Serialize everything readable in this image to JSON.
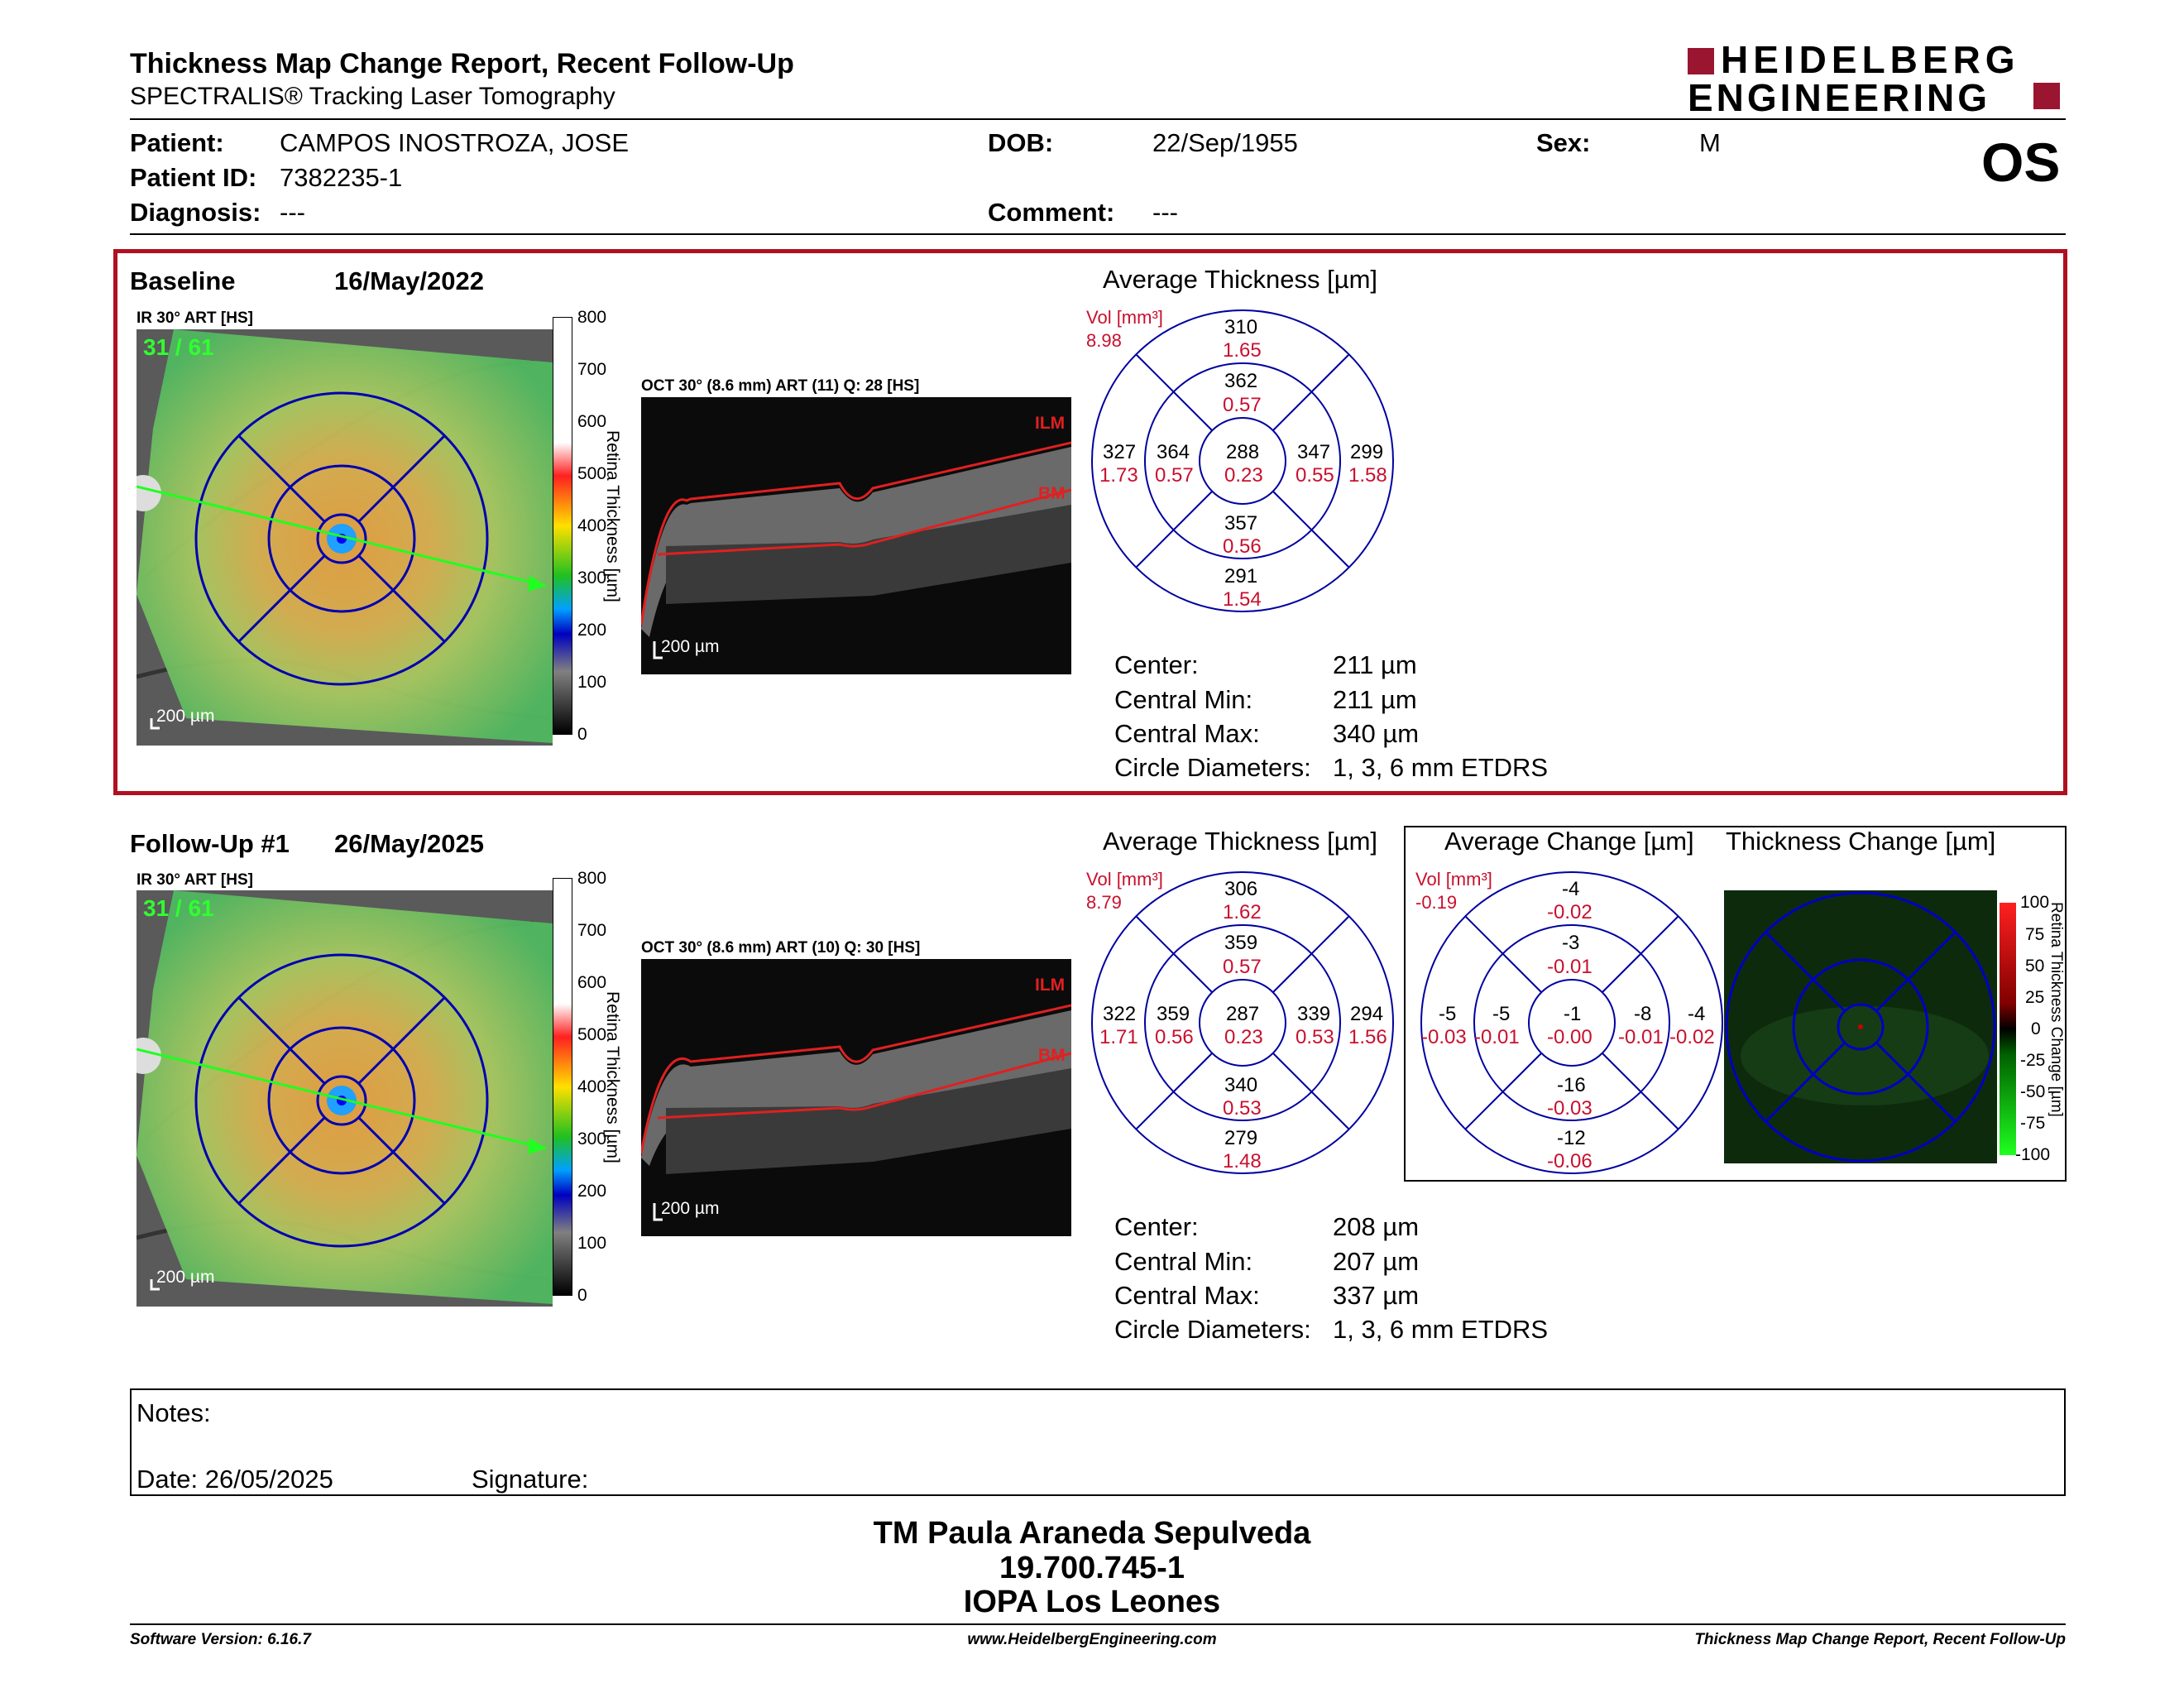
{
  "header": {
    "title": "Thickness Map Change Report, Recent Follow-Up",
    "subtitle": "SPECTRALIS® Tracking Laser Tomography",
    "logo_line1": "HEIDELBERG",
    "logo_line2": "ENGINEERING",
    "eye": "OS"
  },
  "patient": {
    "patient_label": "Patient:",
    "patient": "CAMPOS INOSTROZA, JOSE",
    "id_label": "Patient ID:",
    "id": "7382235-1",
    "diagnosis_label": "Diagnosis:",
    "diagnosis": "---",
    "dob_label": "DOB:",
    "dob": "22/Sep/1955",
    "comment_label": "Comment:",
    "comment": "---",
    "sex_label": "Sex:",
    "sex": "M"
  },
  "colors": {
    "accent": "#b01020",
    "grid": "#0000a0",
    "value_red": "#c8102e"
  },
  "baseline": {
    "label": "Baseline",
    "date": "16/May/2022",
    "ir_label": "IR 30° ART [HS]",
    "ir_overlay": "31 / 61",
    "scale_ir": "200 µm",
    "oct_label": "OCT 30° (8.6 mm) ART (11) Q: 28 [HS]",
    "scale_oct": "200 µm",
    "ilm": "ILM",
    "bm": "BM",
    "cbar_ticks": [
      "800",
      "700",
      "600",
      "500",
      "400",
      "300",
      "200",
      "100",
      "0"
    ],
    "cbar_title": "Retina Thickness [µm]",
    "avg_title": "Average Thickness [µm]",
    "vol_label": "Vol [mm³]",
    "vol": "8.98",
    "grid": {
      "s_out": [
        "310",
        "1.65"
      ],
      "s_in": [
        "362",
        "0.57"
      ],
      "t_out": [
        "327",
        "1.73"
      ],
      "t_in": [
        "364",
        "0.57"
      ],
      "center": [
        "288",
        "0.23"
      ],
      "n_in": [
        "347",
        "0.55"
      ],
      "n_out": [
        "299",
        "1.58"
      ],
      "i_in": [
        "357",
        "0.56"
      ],
      "i_out": [
        "291",
        "1.54"
      ]
    },
    "stats": [
      [
        "Center:",
        "211 µm"
      ],
      [
        "Central Min:",
        "211 µm"
      ],
      [
        "Central Max:",
        "340 µm"
      ],
      [
        "Circle Diameters:",
        "1, 3, 6 mm ETDRS"
      ]
    ]
  },
  "followup": {
    "label": "Follow-Up #1",
    "date": "26/May/2025",
    "ir_label": "IR 30° ART [HS]",
    "ir_overlay": "31 / 61",
    "scale_ir": "200 µm",
    "oct_label": "OCT 30° (8.6 mm) ART (10) Q: 30 [HS]",
    "scale_oct": "200 µm",
    "ilm": "ILM",
    "bm": "BM",
    "cbar_ticks": [
      "800",
      "700",
      "600",
      "500",
      "400",
      "300",
      "200",
      "100",
      "0"
    ],
    "cbar_title": "Retina Thickness [µm]",
    "avg_title": "Average Thickness [µm]",
    "vol_label": "Vol [mm³]",
    "vol": "8.79",
    "grid": {
      "s_out": [
        "306",
        "1.62"
      ],
      "s_in": [
        "359",
        "0.57"
      ],
      "t_out": [
        "322",
        "1.71"
      ],
      "t_in": [
        "359",
        "0.56"
      ],
      "center": [
        "287",
        "0.23"
      ],
      "n_in": [
        "339",
        "0.53"
      ],
      "n_out": [
        "294",
        "1.56"
      ],
      "i_in": [
        "340",
        "0.53"
      ],
      "i_out": [
        "279",
        "1.48"
      ]
    },
    "stats": [
      [
        "Center:",
        "208 µm"
      ],
      [
        "Central Min:",
        "207 µm"
      ],
      [
        "Central Max:",
        "337 µm"
      ],
      [
        "Circle Diameters:",
        "1, 3, 6 mm ETDRS"
      ]
    ],
    "change_title": "Average Change [µm]",
    "change_vol_label": "Vol [mm³]",
    "change_vol": "-0.19",
    "change_grid": {
      "s_out": [
        "-4",
        "-0.02"
      ],
      "s_in": [
        "-3",
        "-0.01"
      ],
      "t_out": [
        "-5",
        "-0.03"
      ],
      "t_in": [
        "-5",
        "-0.01"
      ],
      "center": [
        "-1",
        "-0.00"
      ],
      "n_in": [
        "-8",
        "-0.01"
      ],
      "n_out": [
        "-4",
        "-0.02"
      ],
      "i_in": [
        "-16",
        "-0.03"
      ],
      "i_out": [
        "-12",
        "-0.06"
      ]
    },
    "tchange_title": "Thickness Change [µm]",
    "tchange_ticks": [
      "100",
      "75",
      "50",
      "25",
      "0",
      "-25",
      "-50",
      "-75",
      "-100"
    ],
    "tchange_cbar_title": "Retina Thickness Change [µm]"
  },
  "notes": {
    "label": "Notes:",
    "date": "Date: 26/05/2025",
    "signature": "Signature:"
  },
  "footer": {
    "name": "TM Paula Araneda Sepulveda",
    "rut": "19.700.745-1",
    "clinic": "IOPA Los Leones",
    "version": "Software Version: 6.16.7",
    "url": "www.HeidelbergEngineering.com",
    "report": "Thickness Map Change Report, Recent Follow-Up"
  }
}
